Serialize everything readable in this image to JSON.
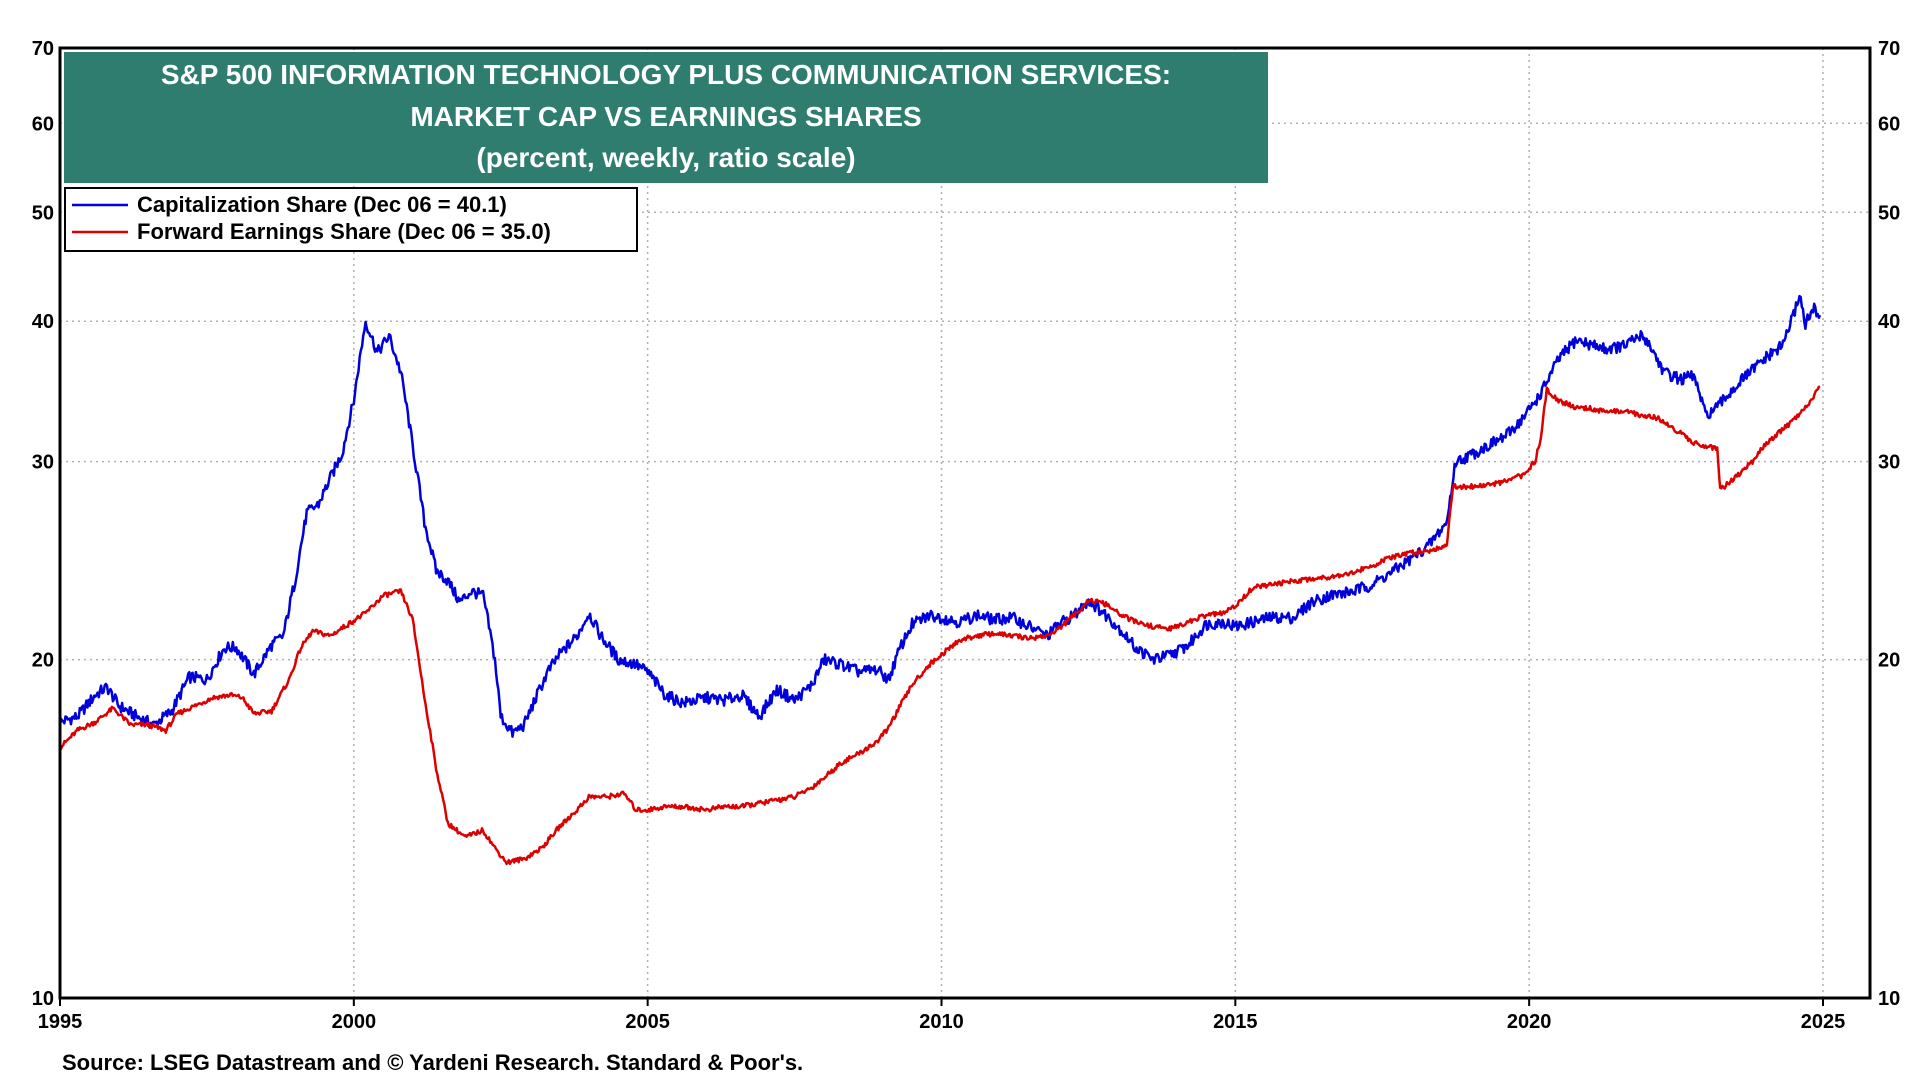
{
  "chart_data": {
    "type": "line",
    "title_lines": [
      "S&P 500 INFORMATION TECHNOLOGY PLUS COMMUNICATION SERVICES:",
      "MARKET CAP VS EARNINGS SHARES",
      "(percent, weekly, ratio scale)"
    ],
    "source": "Source: LSEG Datastream and © Yardeni Research. Standard & Poor's.",
    "xlim": [
      1995,
      2025.8
    ],
    "ylim": [
      10,
      70
    ],
    "y_scale": "log",
    "x_ticks": [
      1995,
      2000,
      2005,
      2010,
      2015,
      2020,
      2025
    ],
    "y_ticks": [
      10,
      20,
      30,
      40,
      50,
      60,
      70
    ],
    "grid": true,
    "legend_position": "top-left",
    "title_bg_color": "#2e7d6f",
    "series": [
      {
        "name": "Capitalization Share  (Dec 06 = 40.1)",
        "color": "#0000dd",
        "points": [
          [
            1995.0,
            17.6
          ],
          [
            1995.3,
            17.8
          ],
          [
            1995.6,
            18.6
          ],
          [
            1995.8,
            18.9
          ],
          [
            1996.0,
            18.2
          ],
          [
            1996.3,
            17.8
          ],
          [
            1996.6,
            17.5
          ],
          [
            1996.9,
            18.0
          ],
          [
            1997.2,
            19.3
          ],
          [
            1997.5,
            19.2
          ],
          [
            1997.8,
            20.5
          ],
          [
            1998.0,
            20.5
          ],
          [
            1998.3,
            19.4
          ],
          [
            1998.6,
            20.6
          ],
          [
            1998.8,
            21.0
          ],
          [
            1999.0,
            23.5
          ],
          [
            1999.2,
            27.0
          ],
          [
            1999.4,
            27.5
          ],
          [
            1999.6,
            29.0
          ],
          [
            1999.8,
            30.5
          ],
          [
            2000.0,
            34.0
          ],
          [
            2000.2,
            40.0
          ],
          [
            2000.4,
            37.5
          ],
          [
            2000.6,
            38.8
          ],
          [
            2000.8,
            36.0
          ],
          [
            2001.0,
            31.0
          ],
          [
            2001.2,
            26.5
          ],
          [
            2001.4,
            24.0
          ],
          [
            2001.6,
            23.5
          ],
          [
            2001.8,
            22.5
          ],
          [
            2002.0,
            23.0
          ],
          [
            2002.2,
            22.8
          ],
          [
            2002.4,
            20.0
          ],
          [
            2002.5,
            17.8
          ],
          [
            2002.7,
            17.2
          ],
          [
            2002.9,
            17.5
          ],
          [
            2003.1,
            18.5
          ],
          [
            2003.3,
            19.5
          ],
          [
            2003.5,
            20.2
          ],
          [
            2003.8,
            21.0
          ],
          [
            2004.0,
            22.0
          ],
          [
            2004.2,
            21.0
          ],
          [
            2004.5,
            20.0
          ],
          [
            2004.8,
            19.8
          ],
          [
            2005.0,
            19.5
          ],
          [
            2005.3,
            18.6
          ],
          [
            2005.6,
            18.3
          ],
          [
            2006.0,
            18.5
          ],
          [
            2006.3,
            18.4
          ],
          [
            2006.6,
            18.6
          ],
          [
            2006.9,
            17.8
          ],
          [
            2007.2,
            18.8
          ],
          [
            2007.5,
            18.4
          ],
          [
            2007.8,
            19.0
          ],
          [
            2008.0,
            20.0
          ],
          [
            2008.3,
            19.8
          ],
          [
            2008.6,
            19.5
          ],
          [
            2008.9,
            19.6
          ],
          [
            2009.1,
            19.2
          ],
          [
            2009.3,
            20.5
          ],
          [
            2009.5,
            21.5
          ],
          [
            2009.8,
            21.9
          ],
          [
            2010.0,
            21.8
          ],
          [
            2010.3,
            21.6
          ],
          [
            2010.6,
            21.9
          ],
          [
            2010.9,
            21.7
          ],
          [
            2011.2,
            21.8
          ],
          [
            2011.5,
            21.4
          ],
          [
            2011.8,
            21.0
          ],
          [
            2012.0,
            21.5
          ],
          [
            2012.3,
            22.0
          ],
          [
            2012.5,
            22.6
          ],
          [
            2012.8,
            21.9
          ],
          [
            2013.0,
            21.4
          ],
          [
            2013.3,
            20.5
          ],
          [
            2013.6,
            20.0
          ],
          [
            2013.9,
            20.2
          ],
          [
            2014.2,
            20.6
          ],
          [
            2014.5,
            21.5
          ],
          [
            2014.8,
            21.6
          ],
          [
            2015.0,
            21.4
          ],
          [
            2015.3,
            21.6
          ],
          [
            2015.6,
            21.8
          ],
          [
            2016.0,
            21.8
          ],
          [
            2016.3,
            22.5
          ],
          [
            2016.6,
            22.8
          ],
          [
            2017.0,
            23.0
          ],
          [
            2017.3,
            23.3
          ],
          [
            2017.6,
            23.8
          ],
          [
            2018.0,
            24.6
          ],
          [
            2018.3,
            25.3
          ],
          [
            2018.6,
            26.5
          ],
          [
            2018.75,
            30.0
          ],
          [
            2019.0,
            30.4
          ],
          [
            2019.3,
            31.0
          ],
          [
            2019.6,
            31.6
          ],
          [
            2019.9,
            32.8
          ],
          [
            2020.2,
            34.5
          ],
          [
            2020.5,
            37.0
          ],
          [
            2020.8,
            38.5
          ],
          [
            2021.0,
            38.2
          ],
          [
            2021.3,
            37.8
          ],
          [
            2021.6,
            38.0
          ],
          [
            2021.9,
            38.8
          ],
          [
            2022.0,
            38.5
          ],
          [
            2022.3,
            36.0
          ],
          [
            2022.6,
            35.5
          ],
          [
            2022.8,
            35.8
          ],
          [
            2023.0,
            33.0
          ],
          [
            2023.2,
            33.5
          ],
          [
            2023.4,
            34.5
          ],
          [
            2023.7,
            35.8
          ],
          [
            2024.0,
            37.0
          ],
          [
            2024.3,
            38.0
          ],
          [
            2024.5,
            40.5
          ],
          [
            2024.6,
            42.3
          ],
          [
            2024.7,
            39.8
          ],
          [
            2024.85,
            41.0
          ],
          [
            2024.95,
            40.5
          ]
        ]
      },
      {
        "name": "Forward Earnings Share (Dec 06 = 35.0)",
        "color": "#dd0000",
        "points": [
          [
            1995.0,
            16.7
          ],
          [
            1995.3,
            17.3
          ],
          [
            1995.6,
            17.6
          ],
          [
            1995.9,
            18.1
          ],
          [
            1996.2,
            17.5
          ],
          [
            1996.5,
            17.5
          ],
          [
            1996.8,
            17.3
          ],
          [
            1997.0,
            17.9
          ],
          [
            1997.3,
            18.2
          ],
          [
            1997.6,
            18.5
          ],
          [
            1997.9,
            18.6
          ],
          [
            1998.1,
            18.5
          ],
          [
            1998.3,
            17.9
          ],
          [
            1998.6,
            18.0
          ],
          [
            1998.9,
            19.2
          ],
          [
            1999.1,
            20.5
          ],
          [
            1999.3,
            21.2
          ],
          [
            1999.6,
            21.0
          ],
          [
            1999.9,
            21.5
          ],
          [
            2000.2,
            22.0
          ],
          [
            2000.5,
            22.8
          ],
          [
            2000.8,
            23.0
          ],
          [
            2001.0,
            21.7
          ],
          [
            2001.2,
            18.5
          ],
          [
            2001.4,
            16.0
          ],
          [
            2001.6,
            14.3
          ],
          [
            2001.9,
            13.9
          ],
          [
            2002.2,
            14.1
          ],
          [
            2002.4,
            13.6
          ],
          [
            2002.6,
            13.2
          ],
          [
            2002.9,
            13.3
          ],
          [
            2003.2,
            13.6
          ],
          [
            2003.5,
            14.2
          ],
          [
            2003.8,
            14.7
          ],
          [
            2004.0,
            15.1
          ],
          [
            2004.3,
            15.1
          ],
          [
            2004.6,
            15.2
          ],
          [
            2004.8,
            14.7
          ],
          [
            2005.0,
            14.7
          ],
          [
            2005.3,
            14.8
          ],
          [
            2005.6,
            14.8
          ],
          [
            2006.0,
            14.7
          ],
          [
            2006.3,
            14.8
          ],
          [
            2006.6,
            14.8
          ],
          [
            2006.9,
            14.9
          ],
          [
            2007.2,
            15.0
          ],
          [
            2007.5,
            15.1
          ],
          [
            2007.8,
            15.4
          ],
          [
            2008.0,
            15.7
          ],
          [
            2008.3,
            16.2
          ],
          [
            2008.6,
            16.5
          ],
          [
            2008.9,
            16.9
          ],
          [
            2009.1,
            17.4
          ],
          [
            2009.3,
            18.2
          ],
          [
            2009.5,
            19.0
          ],
          [
            2009.8,
            19.8
          ],
          [
            2010.0,
            20.2
          ],
          [
            2010.3,
            20.8
          ],
          [
            2010.6,
            21.0
          ],
          [
            2010.9,
            21.1
          ],
          [
            2011.2,
            21.0
          ],
          [
            2011.5,
            20.9
          ],
          [
            2011.8,
            21.0
          ],
          [
            2012.0,
            21.3
          ],
          [
            2012.3,
            22.0
          ],
          [
            2012.5,
            22.6
          ],
          [
            2012.8,
            22.4
          ],
          [
            2013.0,
            22.0
          ],
          [
            2013.3,
            21.6
          ],
          [
            2013.6,
            21.4
          ],
          [
            2013.9,
            21.3
          ],
          [
            2014.2,
            21.6
          ],
          [
            2014.5,
            21.9
          ],
          [
            2014.8,
            22.0
          ],
          [
            2015.0,
            22.3
          ],
          [
            2015.3,
            23.2
          ],
          [
            2015.6,
            23.3
          ],
          [
            2016.0,
            23.5
          ],
          [
            2016.3,
            23.6
          ],
          [
            2016.6,
            23.7
          ],
          [
            2017.0,
            23.9
          ],
          [
            2017.3,
            24.2
          ],
          [
            2017.6,
            24.6
          ],
          [
            2018.0,
            24.9
          ],
          [
            2018.3,
            25.0
          ],
          [
            2018.6,
            25.3
          ],
          [
            2018.7,
            28.5
          ],
          [
            2019.0,
            28.5
          ],
          [
            2019.3,
            28.6
          ],
          [
            2019.6,
            28.8
          ],
          [
            2019.9,
            29.2
          ],
          [
            2020.1,
            30.0
          ],
          [
            2020.2,
            31.5
          ],
          [
            2020.3,
            34.8
          ],
          [
            2020.5,
            34.0
          ],
          [
            2020.8,
            33.5
          ],
          [
            2021.0,
            33.5
          ],
          [
            2021.3,
            33.2
          ],
          [
            2021.6,
            33.3
          ],
          [
            2021.9,
            33.0
          ],
          [
            2022.2,
            32.8
          ],
          [
            2022.5,
            32.0
          ],
          [
            2022.8,
            31.2
          ],
          [
            2023.0,
            31.0
          ],
          [
            2023.2,
            30.8
          ],
          [
            2023.25,
            28.3
          ],
          [
            2023.5,
            29.0
          ],
          [
            2023.8,
            30.0
          ],
          [
            2024.0,
            31.0
          ],
          [
            2024.3,
            32.0
          ],
          [
            2024.6,
            33.0
          ],
          [
            2024.8,
            34.0
          ],
          [
            2024.95,
            35.0
          ]
        ]
      }
    ]
  }
}
